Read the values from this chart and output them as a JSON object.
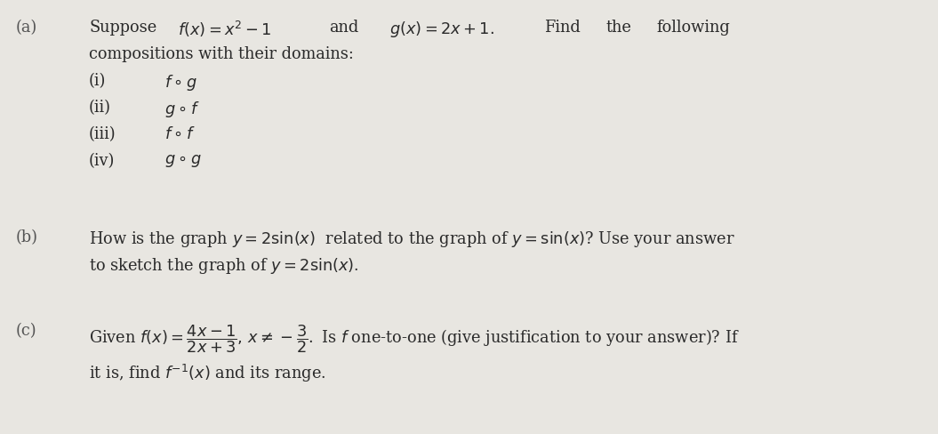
{
  "background_color": "#e8e6e1",
  "text_color": "#2a2a2a",
  "label_color": "#555555",
  "font_size_main": 12.8,
  "part_a_label": "(a)",
  "part_b_label": "(b)",
  "part_c_label": "(c)",
  "part_a_line1_sup": "Suppose",
  "part_a_line1_fx": "$f(x) = x^2 - 1$",
  "part_a_line1_and": "and",
  "part_a_line1_gx": "$g(x) = 2x + 1.$",
  "part_a_line1_find": "Find",
  "part_a_line1_the": "the",
  "part_a_line1_fol": "following",
  "part_a_line2": "compositions with their domains:",
  "part_a_i_label": "(i)",
  "part_a_i_text": "$f \\circ g$",
  "part_a_ii_label": "(ii)",
  "part_a_ii_text": "$g \\circ f$",
  "part_a_iii_label": "(iii)",
  "part_a_iii_text": "$f \\circ f$",
  "part_a_iv_label": "(iv)",
  "part_a_iv_text": "$g \\circ g$",
  "part_b_line1": "How is the graph $y = 2\\sin(x)$  related to the graph of $y = \\sin(x)$? Use your answer",
  "part_b_line2": "to sketch the graph of $y = 2\\sin(x)$.",
  "part_c_line1_a": "Given $f(x) = \\dfrac{4x-1}{2x+3},\\,x \\neq -\\dfrac{3}{2}.$ Is $f$ one-to-one (give justification to your answer)? If",
  "part_c_line2": "it is, find $f^{-1}(x)$ and its range."
}
